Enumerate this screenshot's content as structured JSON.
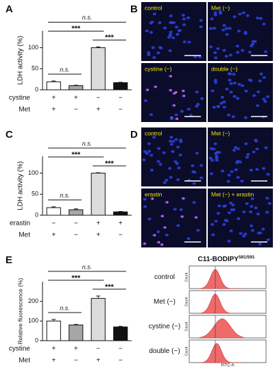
{
  "chart_data": [
    {
      "type": "bar",
      "panel": "A",
      "ylabel": "LDH activity (%)",
      "values": [
        19,
        10,
        100,
        17
      ],
      "errors": [
        2,
        1,
        2,
        1
      ],
      "colors": [
        "#ffffff",
        "#a6a6a6",
        "#dcdcdc",
        "#111111"
      ],
      "ylim": [
        0,
        140
      ],
      "yticks": [
        0,
        50,
        100
      ],
      "conditions": [
        {
          "name": "cystine",
          "signs": [
            "+",
            "+",
            "−",
            "−"
          ]
        },
        {
          "name": "Met",
          "signs": [
            "+",
            "−",
            "+",
            "−"
          ]
        }
      ],
      "annotations": [
        {
          "label": "n.s.",
          "from": 0,
          "to": 1
        },
        {
          "label": "***",
          "from": 2,
          "to": 3
        },
        {
          "label": "***",
          "from": 0,
          "to": 2
        },
        {
          "label": "n.s.",
          "from": 0,
          "to": 3
        }
      ]
    },
    {
      "type": "bar",
      "panel": "C",
      "ylabel": "LDH activity (%)",
      "values": [
        18,
        13,
        100,
        8
      ],
      "errors": [
        2,
        2,
        1,
        1
      ],
      "colors": [
        "#ffffff",
        "#a6a6a6",
        "#dcdcdc",
        "#111111"
      ],
      "ylim": [
        0,
        140
      ],
      "yticks": [
        0,
        50,
        100
      ],
      "conditions": [
        {
          "name": "erastin",
          "signs": [
            "−",
            "−",
            "+",
            "+"
          ]
        },
        {
          "name": "Met",
          "signs": [
            "+",
            "−",
            "+",
            "−"
          ]
        }
      ],
      "annotations": [
        {
          "label": "n.s.",
          "from": 0,
          "to": 1
        },
        {
          "label": "***",
          "from": 2,
          "to": 3
        },
        {
          "label": "***",
          "from": 0,
          "to": 2
        },
        {
          "label": "n.s.",
          "from": 0,
          "to": 3
        }
      ]
    },
    {
      "type": "bar",
      "panel": "E",
      "ylabel": "Relative fluorescence (%)",
      "values": [
        100,
        80,
        215,
        70
      ],
      "errors": [
        8,
        3,
        12,
        3
      ],
      "colors": [
        "#ffffff",
        "#a6a6a6",
        "#dcdcdc",
        "#111111"
      ],
      "ylim": [
        0,
        300
      ],
      "yticks": [
        0,
        100,
        200
      ],
      "conditions": [
        {
          "name": "cystine",
          "signs": [
            "+",
            "+",
            "−",
            "−"
          ]
        },
        {
          "name": "Met",
          "signs": [
            "+",
            "−",
            "+",
            "−"
          ]
        }
      ],
      "annotations": [
        {
          "label": "n.s.",
          "from": 0,
          "to": 1
        },
        {
          "label": "***",
          "from": 2,
          "to": 3
        },
        {
          "label": "***",
          "from": 0,
          "to": 2
        },
        {
          "label": "n.s.",
          "from": 0,
          "to": 3
        }
      ]
    }
  ],
  "image_panels": [
    {
      "panel": "B",
      "tiles": [
        "control",
        "Met (−)",
        "cystine (−)",
        "double (−)"
      ]
    },
    {
      "panel": "D",
      "tiles": [
        "control",
        "Met (−)",
        "erastin",
        "Met  (−) + erastin"
      ]
    }
  ],
  "histogram_panel": {
    "title": "C11-BODIPY",
    "title_sup": "581/591",
    "rows": [
      "control",
      "Met (−)",
      "cystine (−)",
      "double (−)"
    ],
    "xlabel": "FITC-A",
    "ylabel": "Count"
  }
}
